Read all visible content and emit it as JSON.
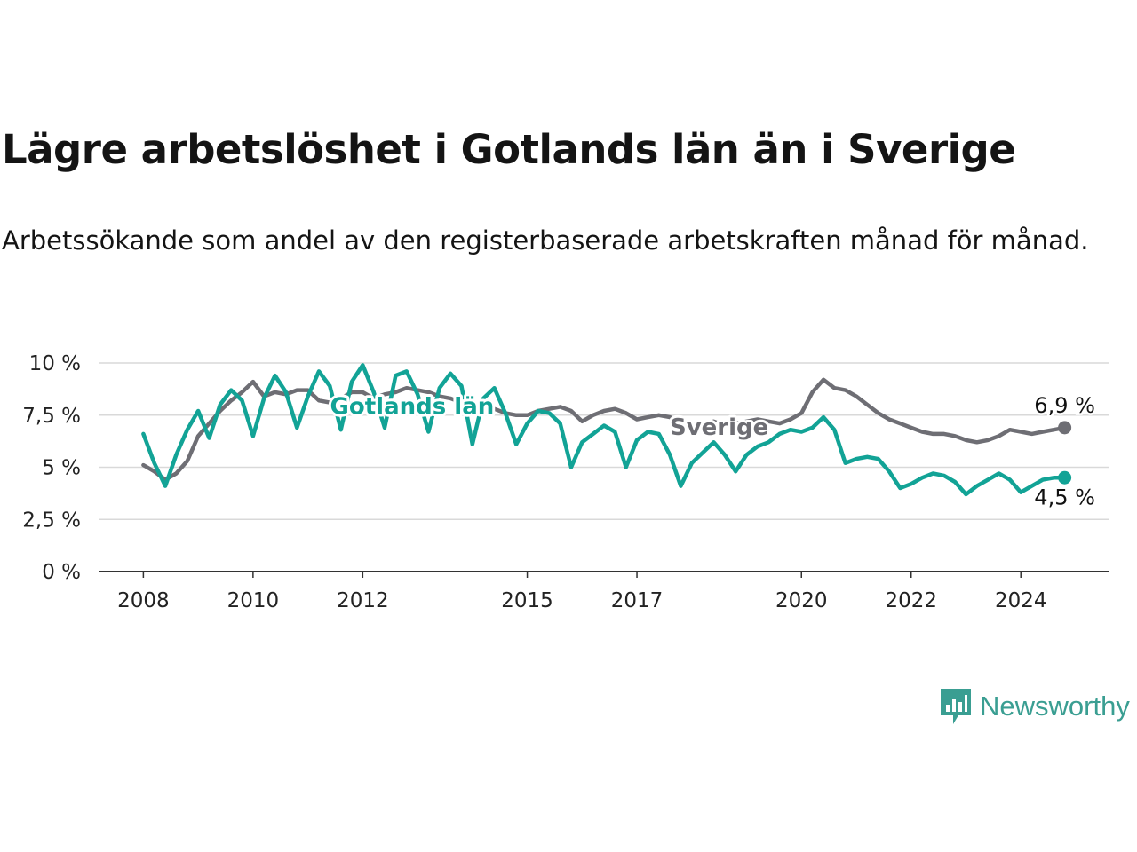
{
  "title": "Lägre arbetslöshet i Gotlands län än i Sverige",
  "subtitle": "Arbetssökande som andel av den registerbaserade arbetskraften månad för månad.",
  "brand": {
    "name": "Newsworthy",
    "icon": "newsworthy-chart-bubble-icon",
    "color": "#3a9e92"
  },
  "chart_data": {
    "type": "line",
    "x_axis": {
      "tick_labels": [
        "2008",
        "2010",
        "2012",
        "2015",
        "2017",
        "2020",
        "2022",
        "2024"
      ],
      "ticks": [
        2008,
        2010,
        2012,
        2015,
        2017,
        2020,
        2022,
        2024
      ],
      "range": [
        2007.2,
        2025.6
      ]
    },
    "y_axis": {
      "tick_labels": [
        "0 %",
        "2,5 %",
        "5 %",
        "7,5 %",
        "10 %"
      ],
      "ticks": [
        0,
        2.5,
        5,
        7.5,
        10
      ],
      "range": [
        0,
        10
      ],
      "unit": "%"
    },
    "grid": true,
    "series": [
      {
        "name": "Sverige",
        "color": "#6e6e74",
        "end_label": "6,9 %",
        "x": [
          2008.0,
          2008.2,
          2008.4,
          2008.6,
          2008.8,
          2009.0,
          2009.2,
          2009.4,
          2009.6,
          2009.8,
          2010.0,
          2010.2,
          2010.4,
          2010.6,
          2010.8,
          2011.0,
          2011.2,
          2011.4,
          2011.6,
          2011.8,
          2012.0,
          2012.2,
          2012.4,
          2012.6,
          2012.8,
          2013.0,
          2013.2,
          2013.4,
          2013.6,
          2013.8,
          2014.0,
          2014.2,
          2014.4,
          2014.6,
          2014.8,
          2015.0,
          2015.2,
          2015.4,
          2015.6,
          2015.8,
          2016.0,
          2016.2,
          2016.4,
          2016.6,
          2016.8,
          2017.0,
          2017.2,
          2017.4,
          2017.6,
          2017.8,
          2018.0,
          2018.2,
          2018.4,
          2018.6,
          2018.8,
          2019.0,
          2019.2,
          2019.4,
          2019.6,
          2019.8,
          2020.0,
          2020.2,
          2020.4,
          2020.6,
          2020.8,
          2021.0,
          2021.2,
          2021.4,
          2021.6,
          2021.8,
          2022.0,
          2022.2,
          2022.4,
          2022.6,
          2022.8,
          2023.0,
          2023.2,
          2023.4,
          2023.6,
          2023.8,
          2024.0,
          2024.2,
          2024.4,
          2024.6,
          2024.8
        ],
        "y": [
          5.1,
          4.8,
          4.4,
          4.7,
          5.3,
          6.5,
          7.1,
          7.7,
          8.2,
          8.6,
          9.1,
          8.4,
          8.6,
          8.5,
          8.7,
          8.7,
          8.2,
          8.1,
          8.3,
          8.6,
          8.6,
          8.3,
          8.5,
          8.6,
          8.8,
          8.7,
          8.6,
          8.4,
          8.3,
          8.1,
          8.0,
          7.9,
          7.8,
          7.6,
          7.5,
          7.5,
          7.7,
          7.8,
          7.9,
          7.7,
          7.2,
          7.5,
          7.7,
          7.8,
          7.6,
          7.3,
          7.4,
          7.5,
          7.4,
          7.2,
          7.0,
          7.1,
          7.2,
          7.0,
          7.1,
          7.2,
          7.3,
          7.2,
          7.1,
          7.3,
          7.6,
          8.6,
          9.2,
          8.8,
          8.7,
          8.4,
          8.0,
          7.6,
          7.3,
          7.1,
          6.9,
          6.7,
          6.6,
          6.6,
          6.5,
          6.3,
          6.2,
          6.3,
          6.5,
          6.8,
          6.7,
          6.6,
          6.7,
          6.8,
          6.9
        ]
      },
      {
        "name": "Gotlands län",
        "color": "#12a396",
        "end_label": "4,5 %",
        "x": [
          2008.0,
          2008.2,
          2008.4,
          2008.6,
          2008.8,
          2009.0,
          2009.2,
          2009.4,
          2009.6,
          2009.8,
          2010.0,
          2010.2,
          2010.4,
          2010.6,
          2010.8,
          2011.0,
          2011.2,
          2011.4,
          2011.6,
          2011.8,
          2012.0,
          2012.2,
          2012.4,
          2012.6,
          2012.8,
          2013.0,
          2013.2,
          2013.4,
          2013.6,
          2013.8,
          2014.0,
          2014.2,
          2014.4,
          2014.6,
          2014.8,
          2015.0,
          2015.2,
          2015.4,
          2015.6,
          2015.8,
          2016.0,
          2016.2,
          2016.4,
          2016.6,
          2016.8,
          2017.0,
          2017.2,
          2017.4,
          2017.6,
          2017.8,
          2018.0,
          2018.2,
          2018.4,
          2018.6,
          2018.8,
          2019.0,
          2019.2,
          2019.4,
          2019.6,
          2019.8,
          2020.0,
          2020.2,
          2020.4,
          2020.6,
          2020.8,
          2021.0,
          2021.2,
          2021.4,
          2021.6,
          2021.8,
          2022.0,
          2022.2,
          2022.4,
          2022.6,
          2022.8,
          2023.0,
          2023.2,
          2023.4,
          2023.6,
          2023.8,
          2024.0,
          2024.2,
          2024.4,
          2024.6,
          2024.8
        ],
        "y": [
          6.6,
          5.2,
          4.1,
          5.6,
          6.8,
          7.7,
          6.4,
          8.0,
          8.7,
          8.2,
          6.5,
          8.3,
          9.4,
          8.6,
          6.9,
          8.4,
          9.6,
          8.9,
          6.8,
          9.1,
          9.9,
          8.6,
          6.9,
          9.4,
          9.6,
          8.5,
          6.7,
          8.8,
          9.5,
          8.9,
          6.1,
          8.3,
          8.8,
          7.6,
          6.1,
          7.1,
          7.7,
          7.6,
          7.1,
          5.0,
          6.2,
          6.6,
          7.0,
          6.7,
          5.0,
          6.3,
          6.7,
          6.6,
          5.6,
          4.1,
          5.2,
          5.7,
          6.2,
          5.6,
          4.8,
          5.6,
          6.0,
          6.2,
          6.6,
          6.8,
          6.7,
          6.9,
          7.4,
          6.8,
          5.2,
          5.4,
          5.5,
          5.4,
          4.8,
          4.0,
          4.2,
          4.5,
          4.7,
          4.6,
          4.3,
          3.7,
          4.1,
          4.4,
          4.7,
          4.4,
          3.8,
          4.1,
          4.4,
          4.5,
          4.5
        ]
      }
    ]
  }
}
